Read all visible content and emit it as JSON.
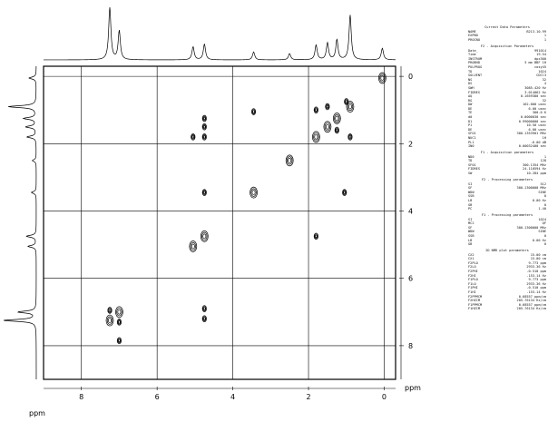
{
  "chart_data": {
    "type": "scatter",
    "subtype": "2D NMR COSY contour plot",
    "xlabel": "ppm",
    "ylabel": "ppm",
    "xlim": [
      9,
      -0.3
    ],
    "ylim": [
      -0.3,
      9
    ],
    "x_ticks": [
      8,
      6,
      4,
      2,
      0
    ],
    "y_ticks": [
      0,
      2,
      4,
      6,
      8
    ],
    "grid": true,
    "diagonal_peaks": [
      {
        "x": 0.05,
        "y": 0.05
      },
      {
        "x": 0.9,
        "y": 0.9
      },
      {
        "x": 1.25,
        "y": 1.25
      },
      {
        "x": 1.5,
        "y": 1.5
      },
      {
        "x": 1.8,
        "y": 1.8
      },
      {
        "x": 2.5,
        "y": 2.5
      },
      {
        "x": 3.45,
        "y": 3.45
      },
      {
        "x": 4.75,
        "y": 4.75
      },
      {
        "x": 5.05,
        "y": 5.05
      },
      {
        "x": 7.0,
        "y": 7.0
      },
      {
        "x": 7.25,
        "y": 7.25
      }
    ],
    "cross_peaks": [
      {
        "x": 4.75,
        "y": 1.25
      },
      {
        "x": 4.75,
        "y": 1.5
      },
      {
        "x": 4.75,
        "y": 1.8
      },
      {
        "x": 5.05,
        "y": 1.8
      },
      {
        "x": 3.45,
        "y": 1.05
      },
      {
        "x": 1.05,
        "y": 3.45
      },
      {
        "x": 1.8,
        "y": 4.75
      },
      {
        "x": 1.8,
        "y": 1.0
      },
      {
        "x": 1.5,
        "y": 0.9
      },
      {
        "x": 1.0,
        "y": 0.75
      },
      {
        "x": 1.25,
        "y": 1.6
      },
      {
        "x": 0.9,
        "y": 1.8
      },
      {
        "x": 4.75,
        "y": 3.45
      },
      {
        "x": 4.75,
        "y": 6.9
      },
      {
        "x": 4.75,
        "y": 7.2
      },
      {
        "x": 7.0,
        "y": 7.3
      },
      {
        "x": 7.25,
        "y": 6.95
      },
      {
        "x": 7.0,
        "y": 7.85
      }
    ],
    "projection_peaks": [
      {
        "ppm": 7.25,
        "h": 1.0
      },
      {
        "ppm": 7.0,
        "h": 0.55
      },
      {
        "ppm": 5.05,
        "h": 0.25
      },
      {
        "ppm": 4.75,
        "h": 0.3
      },
      {
        "ppm": 3.45,
        "h": 0.15
      },
      {
        "ppm": 2.5,
        "h": 0.12
      },
      {
        "ppm": 1.8,
        "h": 0.28
      },
      {
        "ppm": 1.5,
        "h": 0.32
      },
      {
        "ppm": 1.25,
        "h": 0.38
      },
      {
        "ppm": 0.9,
        "h": 0.85
      },
      {
        "ppm": 0.05,
        "h": 0.22
      }
    ]
  },
  "parameters": {
    "sections": [
      {
        "title": "Current Data Parameters",
        "rows": [
          {
            "k": "NAME",
            "v": "B213.10.99"
          },
          {
            "k": "EXPNO",
            "v": "1"
          },
          {
            "k": "PROCNO",
            "v": "1"
          }
        ]
      },
      {
        "title": "F2 - Acquisition Parameters",
        "rows": [
          {
            "k": "Date_",
            "v": "991014"
          },
          {
            "k": "Time",
            "v": "19.54"
          },
          {
            "k": "INSTRUM",
            "v": "dpx300"
          },
          {
            "k": "PROBHD",
            "v": "5 mm BBF 1H"
          },
          {
            "k": "PULPROG",
            "v": "cosy45"
          },
          {
            "k": "TD",
            "v": "1024"
          },
          {
            "k": "SOLVENT",
            "v": "CDCl3"
          },
          {
            "k": "NS",
            "v": "32"
          },
          {
            "k": "DS",
            "v": "4"
          },
          {
            "k": "SWH",
            "v": "3085.420 Hz"
          },
          {
            "k": "FIDRES",
            "v": "3.014062 Hz"
          },
          {
            "k": "AQ",
            "v": "0.1659380 sec"
          },
          {
            "k": "RG",
            "v": "32"
          },
          {
            "k": "DW",
            "v": "162.000 usec"
          },
          {
            "k": "DE",
            "v": "6.00 usec"
          },
          {
            "k": "TE",
            "v": "300.0 K"
          },
          {
            "k": "d0",
            "v": "0.0000030 sec"
          },
          {
            "k": "D1",
            "v": "0.99000000 sec"
          },
          {
            "k": "P1",
            "v": "10.50 usec"
          },
          {
            "k": "DE",
            "v": "6.00 usec"
          },
          {
            "k": "SFO1",
            "v": "300.1353901 MHz"
          },
          {
            "k": "NUC1",
            "v": "1H"
          },
          {
            "k": "PL1",
            "v": "-6.00 dB"
          },
          {
            "k": "IN0",
            "v": "0.00032400 sec"
          }
        ]
      },
      {
        "title": "F1 - Acquisition parameters",
        "rows": [
          {
            "k": "ND0",
            "v": "1"
          },
          {
            "k": "TD",
            "v": "128"
          },
          {
            "k": "SF01",
            "v": "300.1354 MHz"
          },
          {
            "k": "FIDRES",
            "v": "24.110594 Hz"
          },
          {
            "k": "SW",
            "v": "10.284 ppm"
          }
        ]
      },
      {
        "title": "F2 - Processing parameters",
        "rows": [
          {
            "k": "SI",
            "v": "512"
          },
          {
            "k": "SF",
            "v": "300.1300000 MHz"
          },
          {
            "k": "WDW",
            "v": "SINE"
          },
          {
            "k": "SSB",
            "v": "0"
          },
          {
            "k": "LB",
            "v": "0.00 Hz"
          },
          {
            "k": "GB",
            "v": "0"
          },
          {
            "k": "PC",
            "v": "1.40"
          }
        ]
      },
      {
        "title": "F1 - Processing parameters",
        "rows": [
          {
            "k": "SI",
            "v": "1024"
          },
          {
            "k": "MC2",
            "v": "QF"
          },
          {
            "k": "SF",
            "v": "300.1300000 MHz"
          },
          {
            "k": "WDW",
            "v": "SINE"
          },
          {
            "k": "SSB",
            "v": "0"
          },
          {
            "k": "LB",
            "v": "0.00 Hz"
          },
          {
            "k": "GB",
            "v": "0"
          }
        ]
      },
      {
        "title": "2D NMR plot parameters",
        "rows": [
          {
            "k": "CX2",
            "v": "15.00 cm"
          },
          {
            "k": "CX1",
            "v": "15.00 cm"
          },
          {
            "k": "F2PLO",
            "v": "9.773 ppm"
          },
          {
            "k": "F2LO",
            "v": "2933.36 Hz"
          },
          {
            "k": "F2PHI",
            "v": "-0.510 ppm"
          },
          {
            "k": "F2HI",
            "v": "-153.14 Hz"
          },
          {
            "k": "F1PLO",
            "v": "9.773 ppm"
          },
          {
            "k": "F1LO",
            "v": "2933.36 Hz"
          },
          {
            "k": "F1PHI",
            "v": "-0.510 ppm"
          },
          {
            "k": "F1HI",
            "v": "-153.14 Hz"
          },
          {
            "k": "F2PPMCM",
            "v": "0.68557 ppm/cm"
          },
          {
            "k": "F2HZCM",
            "v": "205.76134 Hz/cm"
          },
          {
            "k": "F1PPMCM",
            "v": "0.68557 ppm/cm"
          },
          {
            "k": "F1HZCM",
            "v": "205.76134 Hz/cm"
          }
        ]
      }
    ]
  }
}
